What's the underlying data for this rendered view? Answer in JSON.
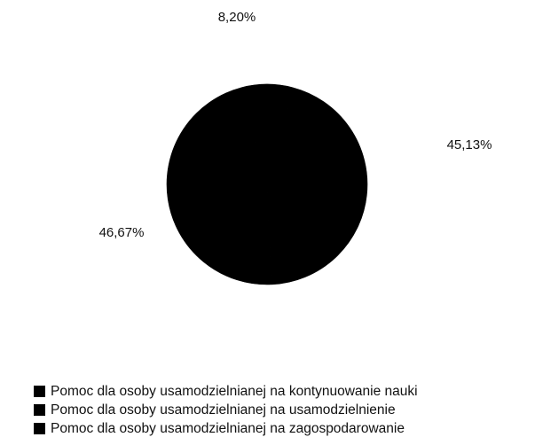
{
  "chart_data": {
    "type": "pie",
    "title": "",
    "categories": [
      "Pomoc dla osoby usamodzielnianej na kontynuowanie nauki",
      "Pomoc dla osoby usamodzielnianej na usamodzielnienie",
      "Pomoc dla osoby usamodzielnianej na zagospodarowanie"
    ],
    "values": [
      45.13,
      46.67,
      8.2
    ],
    "data_labels": [
      "45,13%",
      "46,67%",
      "8,20%"
    ],
    "colors": [
      "#000000",
      "#000000",
      "#000000"
    ],
    "legend_position": "bottom-left"
  }
}
